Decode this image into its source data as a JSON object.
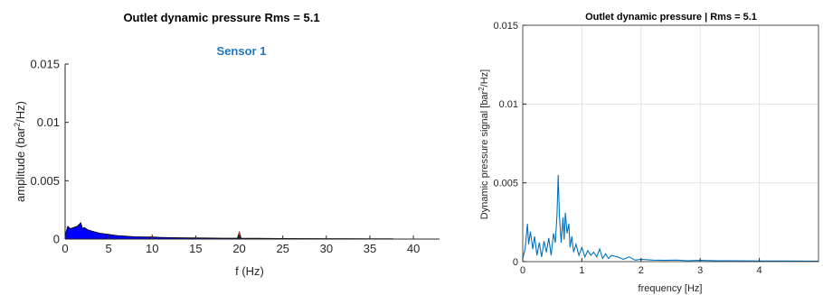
{
  "chart_data": [
    {
      "type": "area",
      "title": "Outlet dynamic pressure Rms = 5.1",
      "subtitle": "Sensor 1",
      "xlabel": "f (Hz)",
      "ylabel_pre": "amplitude (bar",
      "ylabel_sup": "2",
      "ylabel_post": "/Hz)",
      "xlim": [
        0,
        43
      ],
      "ylim": [
        0,
        0.015
      ],
      "x_ticks": [
        0,
        5,
        10,
        15,
        20,
        25,
        30,
        35,
        40
      ],
      "y_ticks": [
        0,
        0.005,
        0.01,
        0.015
      ],
      "grid": false,
      "fill_color": "#0000ff",
      "subtitle_color": "#1f77c4",
      "spike_color": "#c0392b",
      "series": [
        {
          "x": [
            0,
            0.3,
            0.6,
            1.0,
            1.4,
            1.8,
            2.0,
            2.2,
            2.6,
            3.0,
            3.5,
            4.0,
            5.0,
            6.0,
            7.0,
            8.0,
            9.0,
            10.0,
            11.0,
            12.0,
            14.0,
            16.0,
            18.0,
            19.8,
            20.0,
            20.2,
            22.0,
            25.0,
            30.0,
            35.0,
            37.7
          ],
          "y": [
            0.0003,
            0.0011,
            0.0009,
            0.001,
            0.0011,
            0.0014,
            0.0009,
            0.001,
            0.0008,
            0.0007,
            0.0006,
            0.0005,
            0.0004,
            0.0003,
            0.00025,
            0.0002,
            0.00018,
            0.00018,
            0.00015,
            0.00012,
            0.0001,
            9e-05,
            8e-05,
            8e-05,
            0.0006,
            8e-05,
            6e-05,
            5e-05,
            4e-05,
            3e-05,
            2e-05
          ]
        }
      ]
    },
    {
      "type": "line",
      "title": "Outlet dynamic pressure | Rms = 5.1",
      "xlabel": "frequency [Hz]",
      "ylabel_pre": "Dynamic pressure signal [bar",
      "ylabel_sup": "2",
      "ylabel_post": "/Hz]",
      "xlim": [
        0,
        5
      ],
      "ylim": [
        0,
        0.015
      ],
      "x_ticks": [
        0,
        1,
        2,
        3,
        4
      ],
      "y_ticks": [
        0,
        0.005,
        0.01,
        0.015
      ],
      "grid": true,
      "line_color": "#0072bd",
      "series": [
        {
          "x": [
            0,
            0.04,
            0.08,
            0.1,
            0.13,
            0.17,
            0.2,
            0.24,
            0.28,
            0.32,
            0.36,
            0.4,
            0.44,
            0.48,
            0.52,
            0.55,
            0.58,
            0.6,
            0.62,
            0.65,
            0.68,
            0.7,
            0.72,
            0.75,
            0.78,
            0.8,
            0.83,
            0.86,
            0.9,
            0.95,
            1.0,
            1.05,
            1.1,
            1.15,
            1.2,
            1.25,
            1.3,
            1.35,
            1.4,
            1.45,
            1.5,
            1.6,
            1.7,
            1.8,
            1.9,
            2.0,
            2.2,
            2.4,
            2.6,
            2.8,
            3.0,
            3.3,
            3.6,
            4.0,
            4.4,
            5.0
          ],
          "y": [
            0.0002,
            0.0008,
            0.0024,
            0.0011,
            0.0019,
            0.0008,
            0.0016,
            0.0004,
            0.0012,
            0.0003,
            0.0013,
            0.0006,
            0.0015,
            0.0004,
            0.0018,
            0.0012,
            0.003,
            0.0055,
            0.003,
            0.0012,
            0.0028,
            0.0014,
            0.0031,
            0.0018,
            0.0024,
            0.0009,
            0.0016,
            0.0006,
            0.0011,
            0.0004,
            0.0009,
            0.0003,
            0.0007,
            0.0004,
            0.0006,
            0.0003,
            0.0008,
            0.0002,
            0.0005,
            0.0002,
            0.0004,
            0.0003,
            0.00015,
            0.0003,
            0.0001,
            0.00015,
            0.0001,
            8e-05,
            0.0001,
            6e-05,
            8e-05,
            5e-05,
            5e-05,
            4e-05,
            4e-05,
            3e-05
          ]
        }
      ]
    }
  ]
}
